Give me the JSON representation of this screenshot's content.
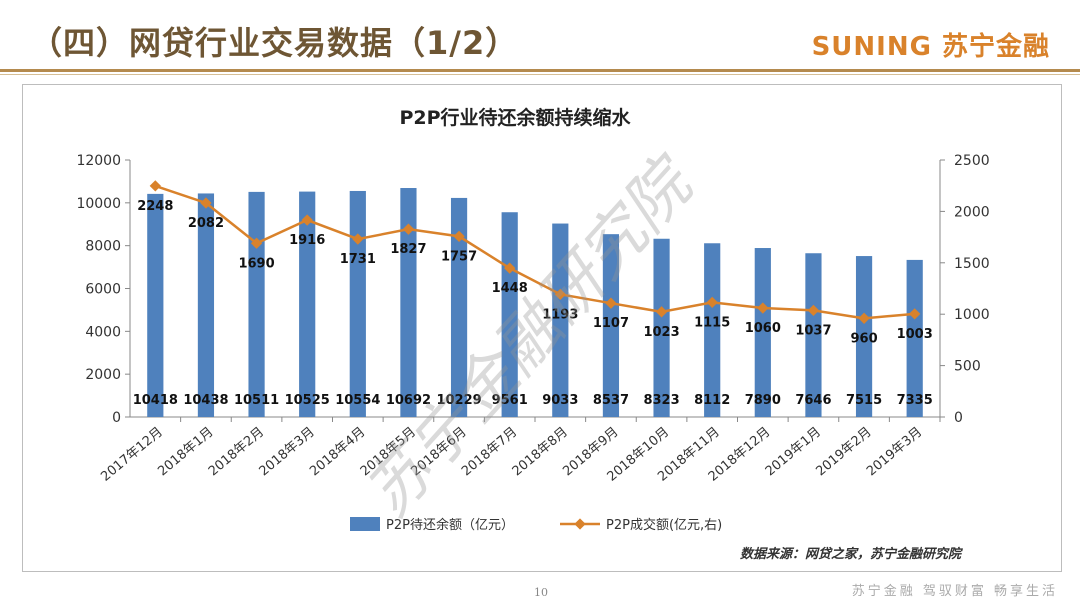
{
  "slide": {
    "title": "（四）网贷行业交易数据（1/2）",
    "brand": "SUNING 苏宁金融",
    "source": "数据来源：网贷之家，苏宁金融研究院",
    "page_number": "10",
    "slogan": "苏宁金融  驾驭财富  畅享生活",
    "watermark": "苏宁金融研究院"
  },
  "chart_data": {
    "type": "bar",
    "title": "P2P行业待还余额持续缩水",
    "categories": [
      "2017年12月",
      "2018年1月",
      "2018年2月",
      "2018年3月",
      "2018年4月",
      "2018年5月",
      "2018年6月",
      "2018年7月",
      "2018年8月",
      "2018年9月",
      "2018年10月",
      "2018年11月",
      "2018年12月",
      "2019年1月",
      "2019年2月",
      "2019年3月"
    ],
    "series": [
      {
        "name": "P2P待还余额（亿元）",
        "type": "bar",
        "axis": "left",
        "color": "#4f81bd",
        "values": [
          10418,
          10438,
          10511,
          10525,
          10554,
          10692,
          10229,
          9561,
          9033,
          8537,
          8323,
          8112,
          7890,
          7646,
          7515,
          7335
        ]
      },
      {
        "name": "P2P成交额(亿元,右)",
        "type": "line",
        "axis": "right",
        "color": "#d9822b",
        "values": [
          2248,
          2082,
          1690,
          1916,
          1731,
          1827,
          1757,
          1448,
          1193,
          1107,
          1023,
          1115,
          1060,
          1037,
          960,
          1003
        ]
      }
    ],
    "y_left": {
      "range": [
        0,
        12000
      ],
      "ticks": [
        "0",
        "2000",
        "4000",
        "6000",
        "8000",
        "10000",
        "12000"
      ]
    },
    "y_right": {
      "range": [
        0,
        2500
      ],
      "ticks": [
        "0",
        "500",
        "1000",
        "1500",
        "2000",
        "2500"
      ]
    },
    "grid": false,
    "legend": "bottom"
  }
}
